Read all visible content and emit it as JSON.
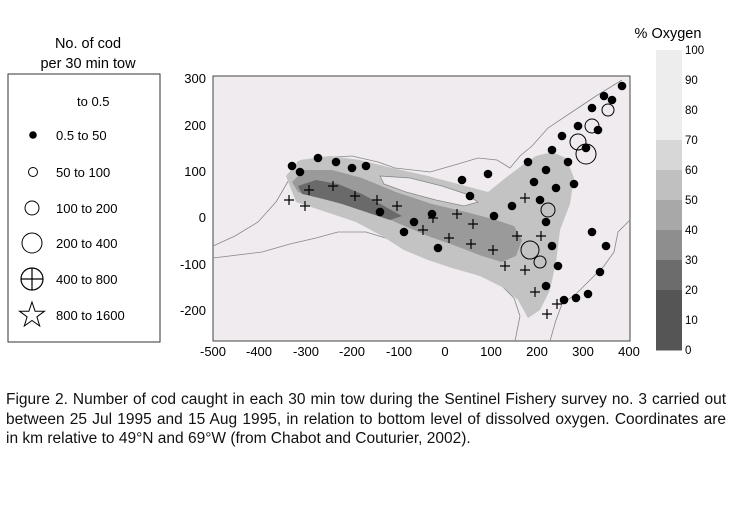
{
  "legend": {
    "title_line1": "No. of cod",
    "title_line2": "per 30 min tow",
    "items": [
      {
        "label": "to 0.5",
        "symbol": "none"
      },
      {
        "label": "0.5 to 50",
        "symbol": "filled-dot-icon"
      },
      {
        "label": "50 to 100",
        "symbol": "small-circle-icon"
      },
      {
        "label": "100 to 200",
        "symbol": "medium-circle-icon"
      },
      {
        "label": "200 to 400",
        "symbol": "large-circle-icon"
      },
      {
        "label": "400 to 800",
        "symbol": "crossed-circle-icon"
      },
      {
        "label": "800 to 1600",
        "symbol": "star-icon"
      }
    ]
  },
  "map": {
    "x_ticks": [
      "-500",
      "-400",
      "-300",
      "-200",
      "-100",
      "0",
      "100",
      "200",
      "300",
      "400"
    ],
    "y_ticks": [
      "300",
      "200",
      "100",
      "0",
      "-100",
      "-200"
    ]
  },
  "colorbar": {
    "title": "% Oxygen",
    "ticks": [
      "100",
      "90",
      "80",
      "70",
      "60",
      "50",
      "40",
      "30",
      "20",
      "10",
      "0"
    ],
    "shades": [
      "#ededed",
      "#ededed",
      "#ededed",
      "#d7d7d7",
      "#c0c0c0",
      "#a8a8a8",
      "#8e8e8e",
      "#6c6c6c",
      "#555555",
      "#555555"
    ]
  },
  "caption": "Figure 2. Number of cod caught in each 30 min tow during the Sentinel Fishery survey no. 3 carried out between 25 Jul 1995 and 15 Aug 1995, in relation to bottom level of dissolved oxygen. Coordinates are in km relative to 49°N and 69°W (from Chabot and Couturier, 2002)."
}
